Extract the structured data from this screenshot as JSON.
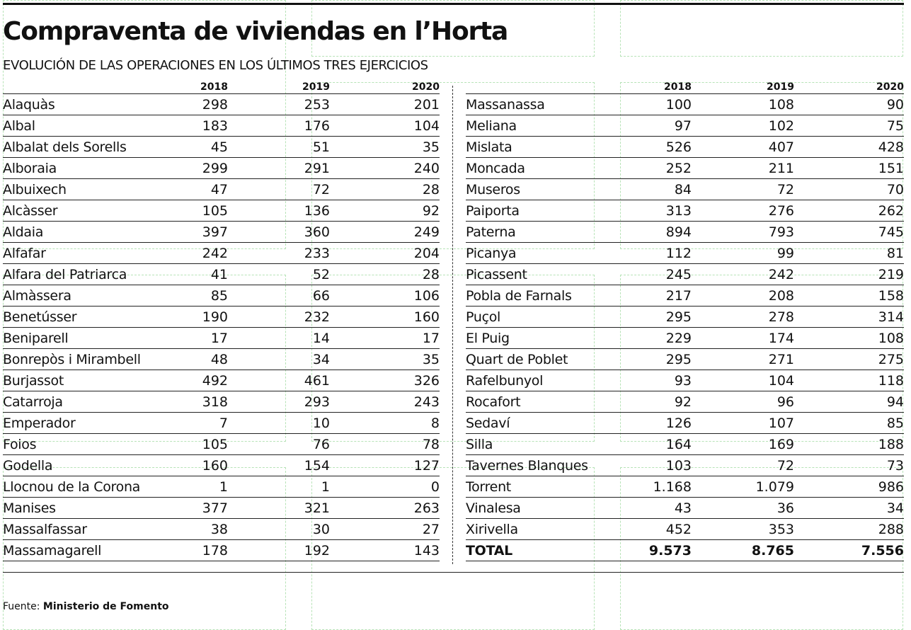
{
  "title": "Compraventa de viviendas en l’Horta",
  "subtitle": "EVOLUCIÓN DE LAS OPERACIONES EN LOS ÚLTIMOS TRES EJERCICIOS",
  "columns": [
    "2018",
    "2019",
    "2020"
  ],
  "left_rows": [
    {
      "name": "Alaquàs",
      "v2018": "298",
      "v2019": "253",
      "v2020": "201"
    },
    {
      "name": "Albal",
      "v2018": "183",
      "v2019": "176",
      "v2020": "104"
    },
    {
      "name": "Albalat dels Sorells",
      "v2018": "45",
      "v2019": "51",
      "v2020": "35"
    },
    {
      "name": "Alboraia",
      "v2018": "299",
      "v2019": "291",
      "v2020": "240"
    },
    {
      "name": "Albuixech",
      "v2018": "47",
      "v2019": "72",
      "v2020": "28"
    },
    {
      "name": "Alcàsser",
      "v2018": "105",
      "v2019": "136",
      "v2020": "92"
    },
    {
      "name": "Aldaia",
      "v2018": "397",
      "v2019": "360",
      "v2020": "249"
    },
    {
      "name": "Alfafar",
      "v2018": "242",
      "v2019": "233",
      "v2020": "204"
    },
    {
      "name": "Alfara del Patriarca",
      "v2018": "41",
      "v2019": "52",
      "v2020": "28"
    },
    {
      "name": "Almàssera",
      "v2018": "85",
      "v2019": "66",
      "v2020": "106"
    },
    {
      "name": "Benetússer",
      "v2018": "190",
      "v2019": "232",
      "v2020": "160"
    },
    {
      "name": "Beniparell",
      "v2018": "17",
      "v2019": "14",
      "v2020": "17"
    },
    {
      "name": "Bonrepòs i Mirambell",
      "v2018": "48",
      "v2019": "34",
      "v2020": "35"
    },
    {
      "name": "Burjassot",
      "v2018": "492",
      "v2019": "461",
      "v2020": "326"
    },
    {
      "name": "Catarroja",
      "v2018": "318",
      "v2019": "293",
      "v2020": "243"
    },
    {
      "name": "Emperador",
      "v2018": "7",
      "v2019": "10",
      "v2020": "8"
    },
    {
      "name": "Foios",
      "v2018": "105",
      "v2019": "76",
      "v2020": "78"
    },
    {
      "name": "Godella",
      "v2018": "160",
      "v2019": "154",
      "v2020": "127"
    },
    {
      "name": "Llocnou de la Corona",
      "v2018": "1",
      "v2019": "1",
      "v2020": "0"
    },
    {
      "name": "Manises",
      "v2018": "377",
      "v2019": "321",
      "v2020": "263"
    },
    {
      "name": "Massalfassar",
      "v2018": "38",
      "v2019": "30",
      "v2020": "27"
    },
    {
      "name": "Massamagarell",
      "v2018": "178",
      "v2019": "192",
      "v2020": "143"
    }
  ],
  "right_rows": [
    {
      "name": "Massanassa",
      "v2018": "100",
      "v2019": "108",
      "v2020": "90"
    },
    {
      "name": "Meliana",
      "v2018": "97",
      "v2019": "102",
      "v2020": "75"
    },
    {
      "name": "Mislata",
      "v2018": "526",
      "v2019": "407",
      "v2020": "428"
    },
    {
      "name": "Moncada",
      "v2018": "252",
      "v2019": "211",
      "v2020": "151"
    },
    {
      "name": "Museros",
      "v2018": "84",
      "v2019": "72",
      "v2020": "70"
    },
    {
      "name": "Paiporta",
      "v2018": "313",
      "v2019": "276",
      "v2020": "262"
    },
    {
      "name": "Paterna",
      "v2018": "894",
      "v2019": "793",
      "v2020": "745"
    },
    {
      "name": "Picanya",
      "v2018": "112",
      "v2019": "99",
      "v2020": "81"
    },
    {
      "name": "Picassent",
      "v2018": "245",
      "v2019": "242",
      "v2020": "219"
    },
    {
      "name": "Pobla de Farnals",
      "v2018": "217",
      "v2019": "208",
      "v2020": "158"
    },
    {
      "name": "Puçol",
      "v2018": "295",
      "v2019": "278",
      "v2020": "314"
    },
    {
      "name": "El Puig",
      "v2018": "229",
      "v2019": "174",
      "v2020": "108"
    },
    {
      "name": "Quart de Poblet",
      "v2018": "295",
      "v2019": "271",
      "v2020": "275"
    },
    {
      "name": "Rafelbunyol",
      "v2018": "93",
      "v2019": "104",
      "v2020": "118"
    },
    {
      "name": "Rocafort",
      "v2018": "92",
      "v2019": "96",
      "v2020": "94"
    },
    {
      "name": "Sedaví",
      "v2018": "126",
      "v2019": "107",
      "v2020": "85"
    },
    {
      "name": "Silla",
      "v2018": "164",
      "v2019": "169",
      "v2020": "188"
    },
    {
      "name": "Tavernes Blanques",
      "v2018": "103",
      "v2019": "72",
      "v2020": "73"
    },
    {
      "name": "Torrent",
      "v2018": "1.168",
      "v2019": "1.079",
      "v2020": "986"
    },
    {
      "name": "Vinalesa",
      "v2018": "43",
      "v2019": "36",
      "v2020": "34"
    },
    {
      "name": "Xirivella",
      "v2018": "452",
      "v2019": "353",
      "v2020": "288"
    }
  ],
  "total": {
    "name": "TOTAL",
    "v2018": "9.573",
    "v2019": "8.765",
    "v2020": "7.556"
  },
  "source": {
    "label": "Fuente:",
    "value": "Ministerio de Fomento"
  }
}
